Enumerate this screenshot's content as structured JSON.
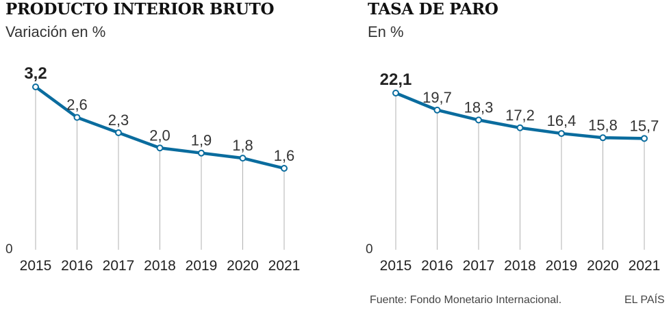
{
  "chart_data": [
    {
      "type": "line",
      "title": "PRODUCTO INTERIOR BRUTO",
      "subtitle": "Variación en %",
      "x": [
        "2015",
        "2016",
        "2017",
        "2018",
        "2019",
        "2020",
        "2021"
      ],
      "values": [
        3.2,
        2.6,
        2.3,
        2.0,
        1.9,
        1.8,
        1.6
      ],
      "labels": [
        "3,2",
        "2,6",
        "2,3",
        "2,0",
        "1,9",
        "1,8",
        "1,6"
      ],
      "ylim": [
        0,
        3.2
      ],
      "y_ticks": [
        "0"
      ],
      "color": "#0a6c9e",
      "grid": "vertical-drop-lines"
    },
    {
      "type": "line",
      "title": "TASA DE PARO",
      "subtitle": "En %",
      "x": [
        "2015",
        "2016",
        "2017",
        "2018",
        "2019",
        "2020",
        "2021"
      ],
      "values": [
        22.1,
        19.7,
        18.3,
        17.2,
        16.4,
        15.8,
        15.7
      ],
      "labels": [
        "22,1",
        "19,7",
        "18,3",
        "17,2",
        "16,4",
        "15,8",
        "15,7"
      ],
      "ylim": [
        0,
        22.1
      ],
      "y_ticks": [
        "0"
      ],
      "color": "#0a6c9e",
      "grid": "vertical-drop-lines"
    }
  ],
  "footer": {
    "source": "Fuente: Fondo Monetario Internacional.",
    "brand": "EL PAÍS"
  }
}
